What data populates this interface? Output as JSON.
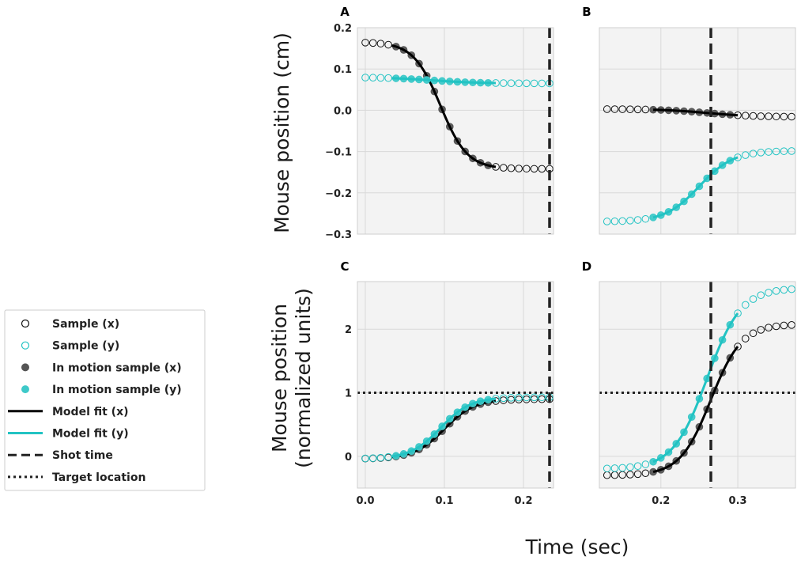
{
  "colors": {
    "x_series": "#111111",
    "y_series": "#22c3c3",
    "in_motion_x_fill": "#555555",
    "in_motion_y_fill": "#3ec9c9",
    "panel_bg": "#f3f3f3",
    "grid": "#d9d9d9",
    "shot_line": "#222222",
    "target_line": "#222222"
  },
  "figure": {
    "xlabel": "Time (sec)",
    "ylabel_top": "Mouse position (cm)",
    "ylabel_bottom_line1": "Mouse position",
    "ylabel_bottom_line2": "(normalized units)"
  },
  "legend": {
    "items": [
      {
        "label": "Sample (x)",
        "kind": "open-circle",
        "color": "#111111"
      },
      {
        "label": "Sample (y)",
        "kind": "open-circle",
        "color": "#22c3c3"
      },
      {
        "label": "In motion sample (x)",
        "kind": "filled-circle",
        "color": "#555555"
      },
      {
        "label": "In motion sample (y)",
        "kind": "filled-circle",
        "color": "#3ec9c9"
      },
      {
        "label": "Model fit (x)",
        "kind": "solid-line",
        "color": "#000000"
      },
      {
        "label": "Model fit (y)",
        "kind": "solid-line",
        "color": "#22c3c3"
      },
      {
        "label": "Shot time",
        "kind": "dashed-line",
        "color": "#222222"
      },
      {
        "label": "Target location",
        "kind": "dotted-line",
        "color": "#222222"
      }
    ]
  },
  "chart_data": [
    {
      "panel": "A",
      "type": "scatter",
      "xlim": [
        -0.01,
        0.238
      ],
      "ylim": [
        -0.3,
        0.2
      ],
      "xticks": [
        0.0,
        0.1,
        0.2
      ],
      "show_xtick_labels": false,
      "yticks": [
        -0.3,
        -0.2,
        -0.1,
        0.0,
        0.1,
        0.2
      ],
      "ytick_labels": [
        "−0.3",
        "−0.2",
        "−0.1",
        "0.0",
        "0.1",
        "0.2"
      ],
      "show_ytick_labels": true,
      "shot_time": 0.233,
      "target_location": null,
      "motion": {
        "t0": 0.033,
        "t1": 0.165
      },
      "x_series": {
        "start": 0.165,
        "end": -0.142,
        "mid": 0.095,
        "tau": 0.017,
        "tmin": 0.0,
        "tmax": 0.233,
        "n": 25
      },
      "y_series": {
        "start": 0.08,
        "end": 0.065,
        "mid": 0.085,
        "tau": 0.03,
        "tmin": 0.0,
        "tmax": 0.233,
        "n": 25
      }
    },
    {
      "panel": "B",
      "type": "scatter",
      "xlim": [
        0.12,
        0.375
      ],
      "ylim": [
        -0.3,
        0.2
      ],
      "xticks": [
        0.2,
        0.3
      ],
      "show_xtick_labels": false,
      "yticks": [
        -0.3,
        -0.2,
        -0.1,
        0.0,
        0.1,
        0.2
      ],
      "show_ytick_labels": false,
      "shot_time": 0.265,
      "target_location": null,
      "motion": {
        "t0": 0.19,
        "t1": 0.3
      },
      "x_series": {
        "start": 0.003,
        "end": -0.016,
        "mid": 0.26,
        "tau": 0.03,
        "tmin": 0.13,
        "tmax": 0.37,
        "n": 25
      },
      "y_series": {
        "start": -0.27,
        "end": -0.098,
        "mid": 0.25,
        "tau": 0.022,
        "tmin": 0.13,
        "tmax": 0.37,
        "n": 25
      }
    },
    {
      "panel": "C",
      "type": "scatter",
      "xlim": [
        -0.01,
        0.238
      ],
      "ylim": [
        -0.5,
        2.75
      ],
      "xticks": [
        0.0,
        0.1,
        0.2
      ],
      "xtick_labels": [
        "0.0",
        "0.1",
        "0.2"
      ],
      "show_xtick_labels": true,
      "yticks": [
        0,
        1,
        2
      ],
      "ytick_labels": [
        "0",
        "1",
        "2"
      ],
      "show_ytick_labels": true,
      "shot_time": 0.233,
      "target_location": 1.0,
      "motion": {
        "t0": 0.033,
        "t1": 0.165
      },
      "x_series": {
        "start": -0.04,
        "end": 0.9,
        "mid": 0.1,
        "tau": 0.019,
        "tmin": 0.0,
        "tmax": 0.233,
        "n": 25
      },
      "y_series": {
        "start": -0.04,
        "end": 0.93,
        "mid": 0.095,
        "tau": 0.019,
        "tmin": 0.0,
        "tmax": 0.233,
        "n": 25
      }
    },
    {
      "panel": "D",
      "type": "scatter",
      "xlim": [
        0.12,
        0.375
      ],
      "ylim": [
        -0.5,
        2.75
      ],
      "xticks": [
        0.2,
        0.3
      ],
      "xtick_labels": [
        "0.2",
        "0.3"
      ],
      "show_xtick_labels": true,
      "yticks": [
        0,
        1,
        2
      ],
      "show_ytick_labels": false,
      "shot_time": 0.265,
      "target_location": 1.0,
      "motion": {
        "t0": 0.19,
        "t1": 0.3
      },
      "x_series": {
        "start": -0.3,
        "end": 2.08,
        "mid": 0.265,
        "tau": 0.02,
        "tmin": 0.13,
        "tmax": 0.37,
        "n": 25
      },
      "y_series": {
        "start": -0.2,
        "end": 2.65,
        "mid": 0.26,
        "tau": 0.022,
        "tmin": 0.13,
        "tmax": 0.37,
        "n": 25
      }
    }
  ]
}
